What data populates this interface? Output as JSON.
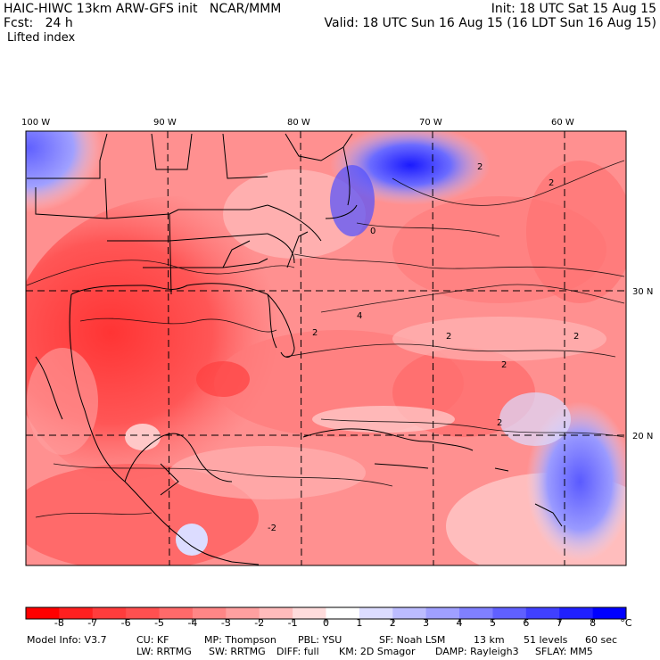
{
  "header": {
    "title": "HAIC-HIWC 13km ARW-GFS init   NCAR/MMM",
    "fcst": "Fcst:   24 h",
    "field": "Lifted index",
    "init": "Init: 18 UTC Sat 15 Aug 15",
    "valid": "Valid: 18 UTC Sun 16 Aug 15 (16 LDT Sun 16 Aug 15)"
  },
  "map": {
    "lon_labels": [
      "100 W",
      "90 W",
      "80 W",
      "70 W",
      "60 W"
    ],
    "lat_labels": [
      "30 N",
      "20 N"
    ],
    "contour_labels": [
      "2",
      "2",
      "2",
      "4",
      "2",
      "2",
      "0",
      "2",
      "2",
      "-2"
    ],
    "colors": {
      "frame": "#000000",
      "gridline": "#000000"
    }
  },
  "colorbar": {
    "labels": [
      "-8",
      "-7",
      "-6",
      "-5",
      "-4",
      "-3",
      "-2",
      "-1",
      "0",
      "1",
      "2",
      "3",
      "4",
      "5",
      "6",
      "7",
      "8"
    ],
    "unit": "°C",
    "colors": [
      "#ff0000",
      "#ff2020",
      "#ff3c3c",
      "#ff5050",
      "#ff6a6a",
      "#ff8686",
      "#ffa0a0",
      "#ffbcbc",
      "#ffdcdc",
      "#ffffff",
      "#dcdcff",
      "#bcbcff",
      "#a0a0ff",
      "#8080ff",
      "#6060ff",
      "#4040ff",
      "#2020ff",
      "#0000ff"
    ]
  },
  "footer": {
    "line1": [
      "Model Info: V3.7",
      "CU: KF",
      "MP: Thompson",
      "PBL: YSU",
      "SF: Noah LSM",
      "13 km",
      "51 levels",
      "60 sec"
    ],
    "line2": [
      "LW: RRTMG",
      "SW: RRTMG",
      "DIFF: full",
      "KM: 2D Smagor",
      "DAMP: Rayleigh3",
      "SFLAY: MM5"
    ]
  }
}
